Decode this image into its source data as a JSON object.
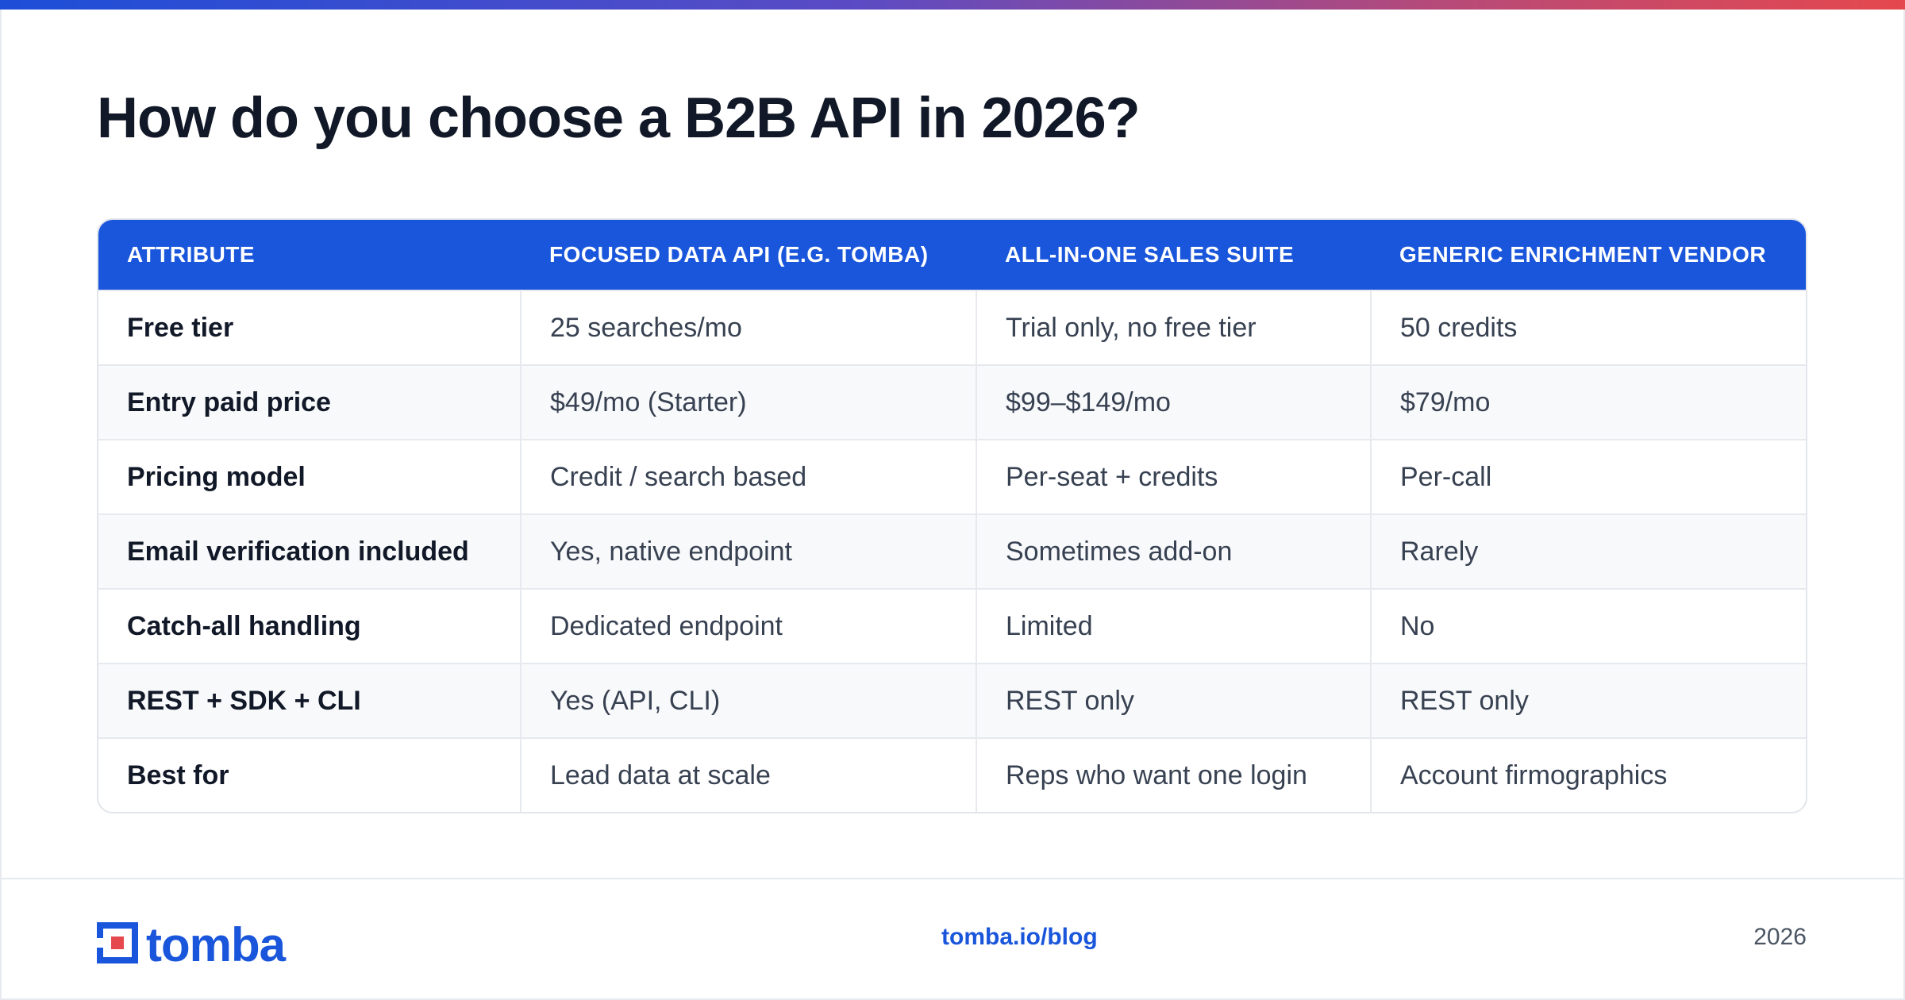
{
  "title": "How do you choose a B2B API in 2026?",
  "colors": {
    "accent": "#1a56db",
    "gradient_start": "#1d4ed8",
    "gradient_end": "#e5484d",
    "text": "#111827"
  },
  "table": {
    "headers": [
      "ATTRIBUTE",
      "FOCUSED DATA API (E.G. TOMBA)",
      "ALL-IN-ONE SALES SUITE",
      "GENERIC ENRICHMENT VENDOR"
    ],
    "rows": [
      [
        "Free tier",
        "25 searches/mo",
        "Trial only, no free tier",
        "50 credits"
      ],
      [
        "Entry paid price",
        "$49/mo (Starter)",
        "$99–$149/mo",
        "$79/mo"
      ],
      [
        "Pricing model",
        "Credit / search based",
        "Per-seat + credits",
        "Per-call"
      ],
      [
        "Email verification included",
        "Yes, native endpoint",
        "Sometimes add-on",
        "Rarely"
      ],
      [
        "Catch-all handling",
        "Dedicated endpoint",
        "Limited",
        "No"
      ],
      [
        "REST + SDK + CLI",
        "Yes (API, CLI)",
        "REST only",
        "REST only"
      ],
      [
        "Best for",
        "Lead data at scale",
        "Reps who want one login",
        "Account firmographics"
      ]
    ]
  },
  "footer": {
    "logo_text": "tomba",
    "logo_icon": "tomba-logo-icon",
    "link": "tomba.io/blog",
    "year": "2026"
  }
}
